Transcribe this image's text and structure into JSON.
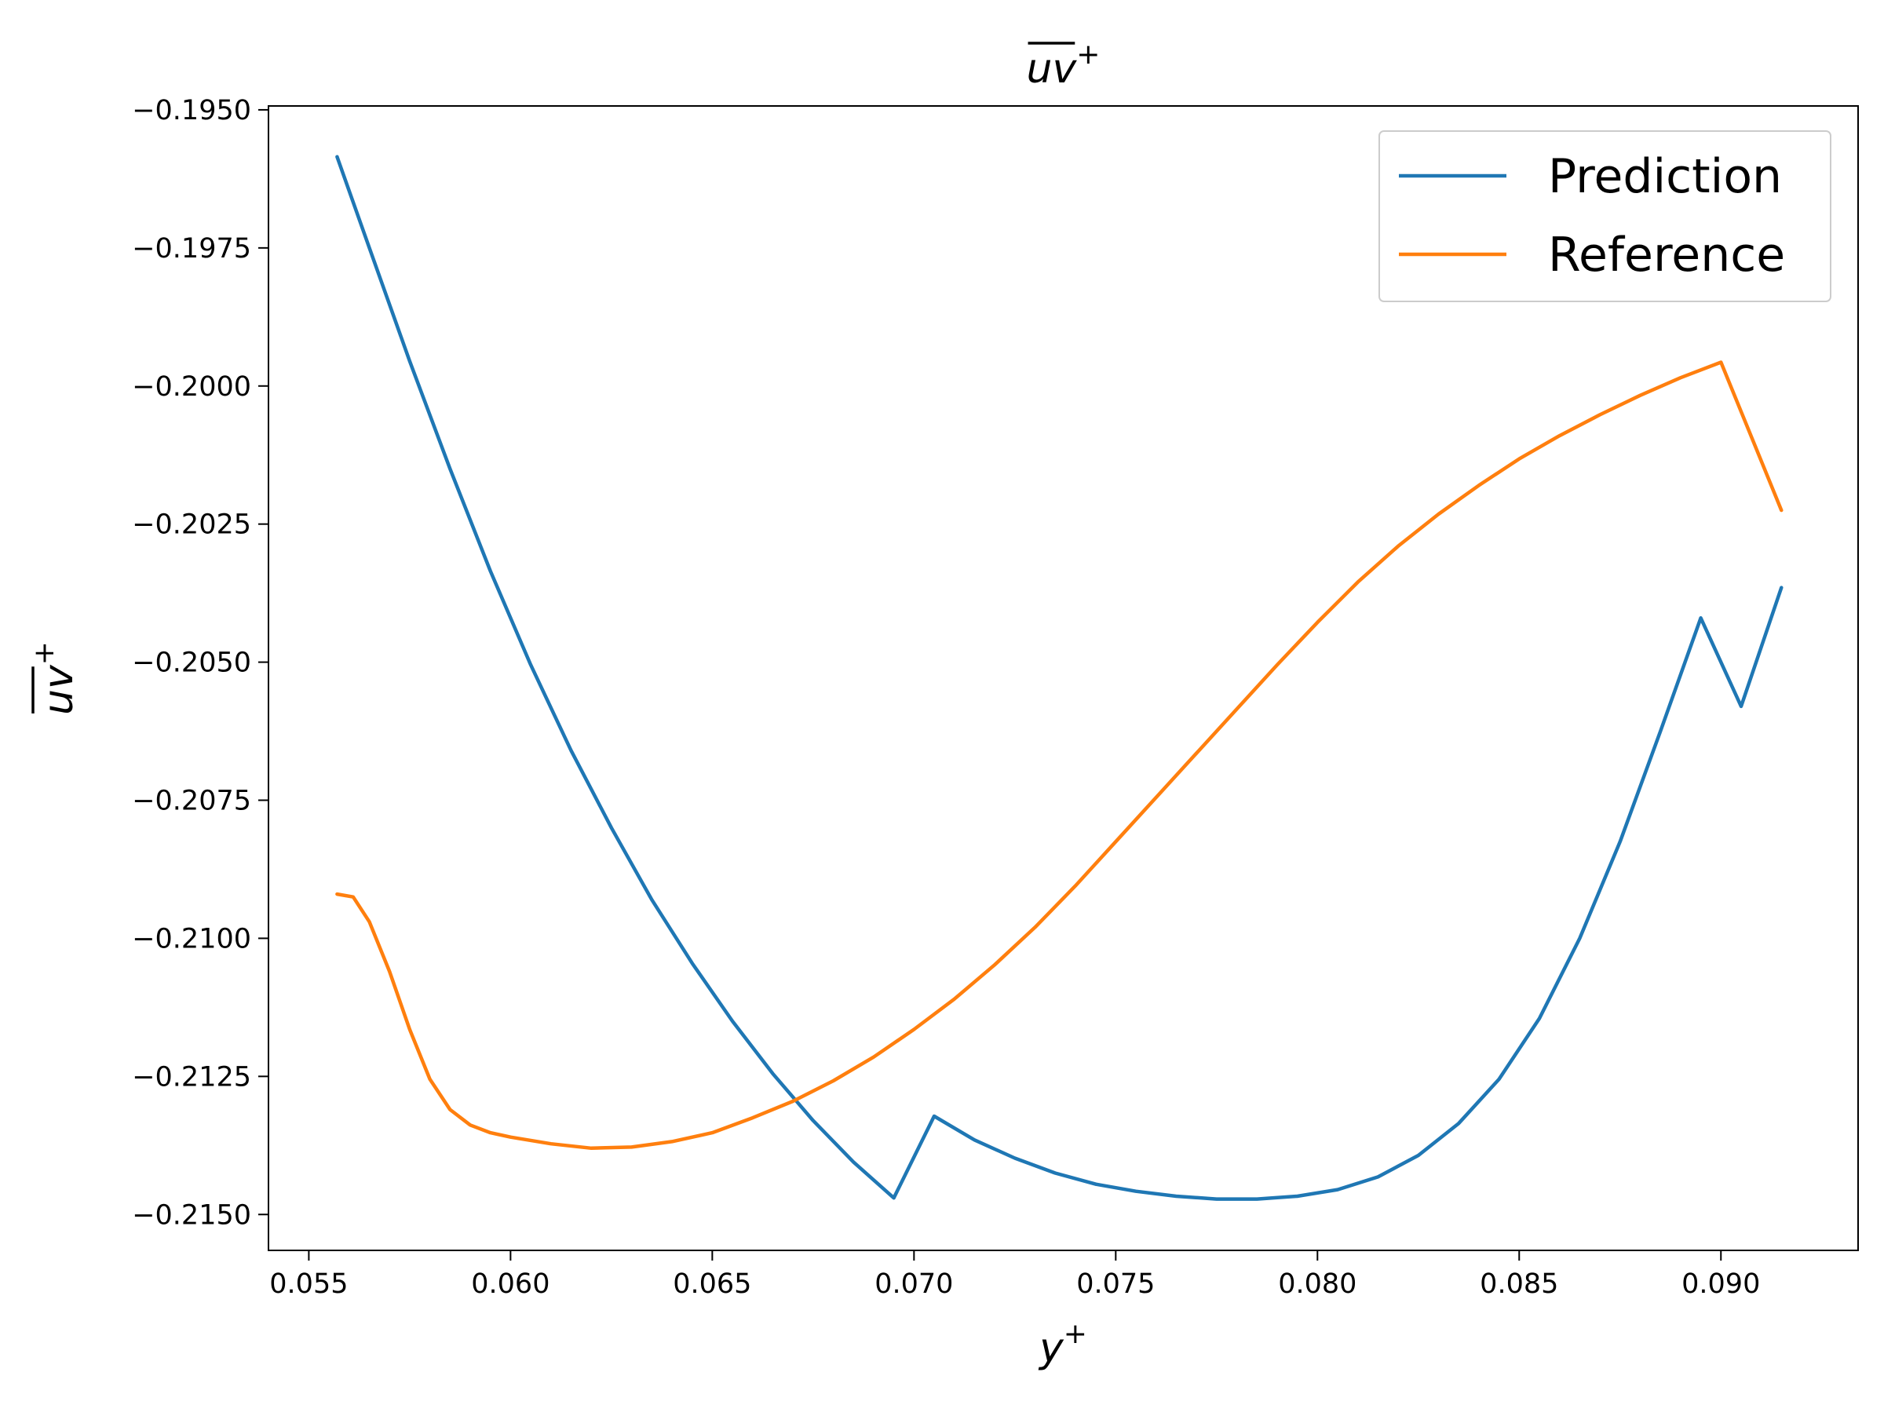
{
  "chart_data": {
    "type": "line",
    "title": {
      "base": "uv",
      "sup": "+",
      "overline": true
    },
    "xlabel": {
      "base": "y",
      "sup": "+"
    },
    "ylabel": {
      "base": "uv",
      "sup": "+",
      "overline": true
    },
    "xlim": [
      0.054,
      0.0934
    ],
    "ylim": [
      -0.21565,
      -0.19493
    ],
    "x_ticks": [
      0.055,
      0.06,
      0.065,
      0.07,
      0.075,
      0.08,
      0.085,
      0.09
    ],
    "x_tick_labels": [
      "0.055",
      "0.060",
      "0.065",
      "0.070",
      "0.075",
      "0.080",
      "0.085",
      "0.090"
    ],
    "y_ticks": [
      -0.195,
      -0.1975,
      -0.2,
      -0.2025,
      -0.205,
      -0.2075,
      -0.21,
      -0.2125,
      -0.215
    ],
    "y_tick_labels": [
      "−0.1950",
      "−0.1975",
      "−0.2000",
      "−0.2025",
      "−0.2050",
      "−0.2075",
      "−0.2100",
      "−0.2125",
      "−0.2150"
    ],
    "grid": false,
    "legend_position": "top-right",
    "series": [
      {
        "name": "Prediction",
        "color": "#1f77b4",
        "x": [
          0.0557,
          0.0565,
          0.0575,
          0.0585,
          0.0595,
          0.0605,
          0.0615,
          0.0625,
          0.0635,
          0.0645,
          0.0655,
          0.0665,
          0.0675,
          0.0685,
          0.0695,
          0.0705,
          0.0715,
          0.0725,
          0.0735,
          0.0745,
          0.0755,
          0.0765,
          0.0775,
          0.0785,
          0.0795,
          0.0805,
          0.0815,
          0.0825,
          0.0835,
          0.0845,
          0.0855,
          0.0865,
          0.0875,
          0.0885,
          0.0895,
          0.0905,
          0.0915
        ],
        "y": [
          -0.19585,
          -0.1975,
          -0.19955,
          -0.2015,
          -0.20335,
          -0.20505,
          -0.2066,
          -0.208,
          -0.2093,
          -0.21045,
          -0.2115,
          -0.21245,
          -0.2133,
          -0.21405,
          -0.2147,
          -0.21322,
          -0.21365,
          -0.21398,
          -0.21425,
          -0.21445,
          -0.21458,
          -0.21467,
          -0.21472,
          -0.21472,
          -0.21467,
          -0.21455,
          -0.21432,
          -0.21393,
          -0.21335,
          -0.21255,
          -0.21145,
          -0.21,
          -0.20825,
          -0.20625,
          -0.2042,
          -0.2058,
          -0.20365
        ]
      },
      {
        "name": "Reference",
        "color": "#ff7f0e",
        "x": [
          0.0557,
          0.0561,
          0.0565,
          0.057,
          0.0575,
          0.058,
          0.0585,
          0.059,
          0.0595,
          0.06,
          0.061,
          0.062,
          0.063,
          0.064,
          0.065,
          0.066,
          0.067,
          0.068,
          0.069,
          0.07,
          0.071,
          0.072,
          0.073,
          0.074,
          0.075,
          0.076,
          0.077,
          0.078,
          0.079,
          0.08,
          0.081,
          0.082,
          0.083,
          0.084,
          0.085,
          0.086,
          0.087,
          0.088,
          0.089,
          0.09,
          0.0915
        ],
        "y": [
          -0.2092,
          -0.20925,
          -0.2097,
          -0.2106,
          -0.21165,
          -0.21255,
          -0.2131,
          -0.21338,
          -0.21352,
          -0.2136,
          -0.21372,
          -0.2138,
          -0.21378,
          -0.21368,
          -0.21352,
          -0.21325,
          -0.21295,
          -0.21258,
          -0.21215,
          -0.21165,
          -0.2111,
          -0.21048,
          -0.2098,
          -0.20905,
          -0.20825,
          -0.20745,
          -0.20665,
          -0.20585,
          -0.20505,
          -0.20428,
          -0.20355,
          -0.2029,
          -0.20232,
          -0.2018,
          -0.20132,
          -0.2009,
          -0.20052,
          -0.20017,
          -0.19985,
          -0.19957,
          -0.20225
        ]
      }
    ]
  }
}
